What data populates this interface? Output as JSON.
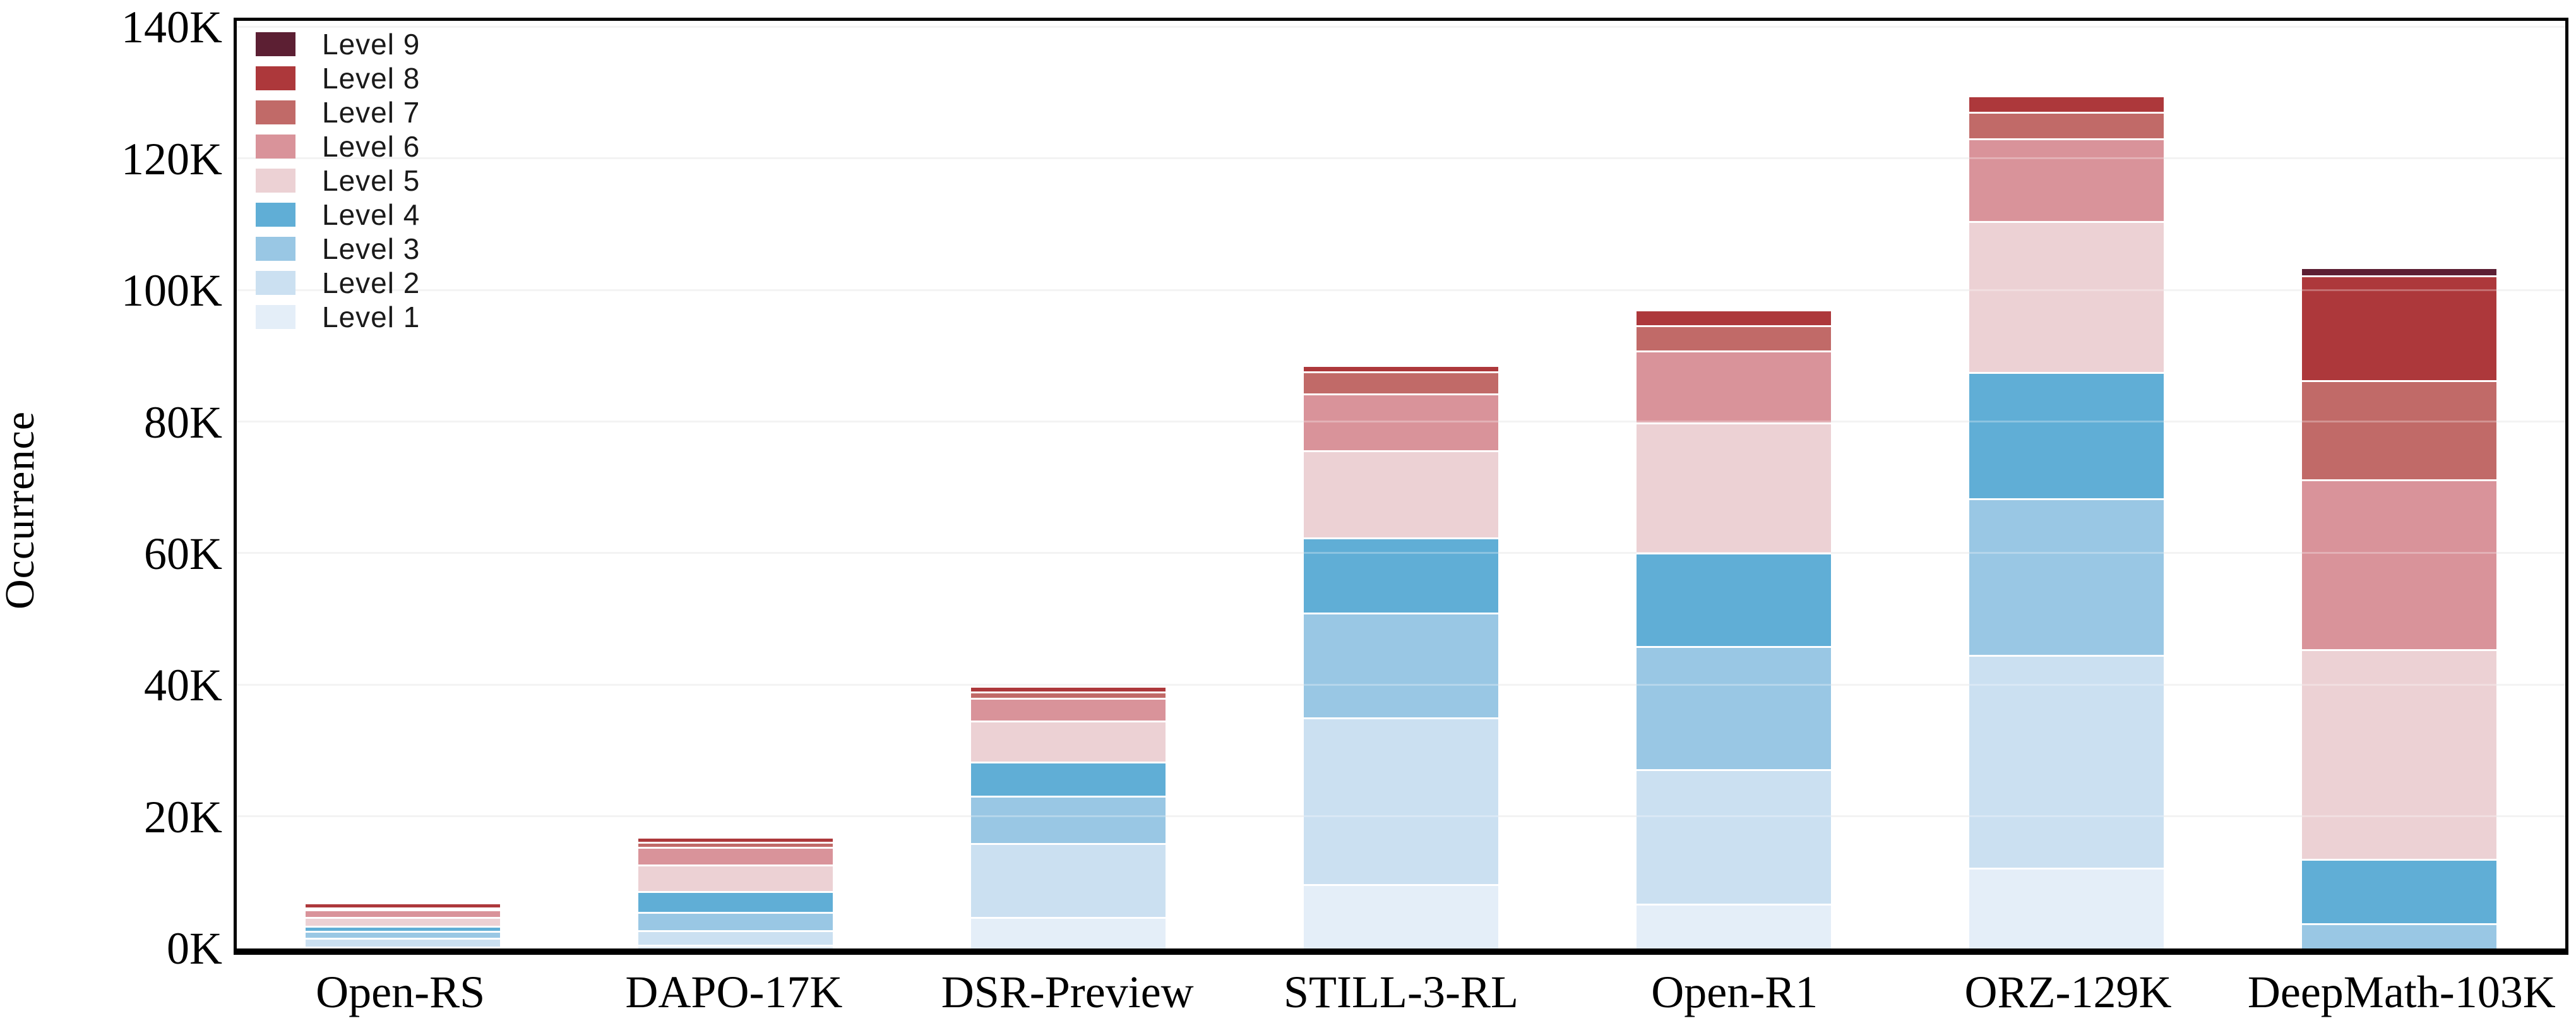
{
  "chart_data": {
    "type": "bar",
    "stacked": true,
    "title": "",
    "ylabel": "Occurrence",
    "xlabel": "",
    "units": "thousands",
    "ylim": [
      0,
      141
    ],
    "ytick_values": [
      0,
      20,
      40,
      60,
      80,
      100,
      120,
      140
    ],
    "ytick_labels": [
      "0K",
      "20K",
      "40K",
      "60K",
      "80K",
      "100K",
      "120K",
      "140K"
    ],
    "grid": true,
    "legend_position": "top-left-inside",
    "legend_order_top_to_bottom": [
      "Level 9",
      "Level 8",
      "Level 7",
      "Level 6",
      "Level 5",
      "Level 4",
      "Level 3",
      "Level 2",
      "Level 1"
    ],
    "categories": [
      "Open-RS",
      "DAPO-17K",
      "DSR-Preview",
      "STILL-3-RL",
      "Open-R1",
      "ORZ-129K",
      "DeepMath-103K"
    ],
    "series": [
      {
        "name": "Level 1",
        "color": "#e4eef8",
        "values": [
          0.3,
          0.6,
          4.8,
          9.8,
          6.8,
          12.3,
          0
        ]
      },
      {
        "name": "Level 2",
        "color": "#cbe0f1",
        "values": [
          1.3,
          2.2,
          11.2,
          25.3,
          20.5,
          32.3,
          0
        ]
      },
      {
        "name": "Level 3",
        "color": "#99c7e4",
        "values": [
          1.1,
          2.8,
          7.2,
          16.0,
          18.7,
          23.8,
          3.8
        ]
      },
      {
        "name": "Level 4",
        "color": "#60aed6",
        "values": [
          0.8,
          3.1,
          5.2,
          11.4,
          14.2,
          19.2,
          9.8
        ]
      },
      {
        "name": "Level 5",
        "color": "#ecd1d4",
        "values": [
          1.3,
          4.1,
          6.3,
          13.2,
          19.8,
          23.0,
          31.9
        ]
      },
      {
        "name": "Level 6",
        "color": "#d9939a",
        "values": [
          1.2,
          2.7,
          3.4,
          8.7,
          10.9,
          12.6,
          25.8
        ]
      },
      {
        "name": "Level 7",
        "color": "#c16a68",
        "values": [
          0.2,
          0.7,
          1.0,
          3.3,
          3.8,
          4.0,
          15.1
        ]
      },
      {
        "name": "Level 8",
        "color": "#ad383b",
        "values": [
          0.7,
          0.8,
          0.8,
          1.0,
          2.4,
          2.5,
          15.9
        ]
      },
      {
        "name": "Level 9",
        "color": "#5c1f33",
        "values": [
          0,
          0,
          0,
          0,
          0,
          0,
          1.3
        ]
      }
    ],
    "totals": [
      6.9,
      17.0,
      39.9,
      88.7,
      97.1,
      129.7,
      103.6
    ]
  }
}
